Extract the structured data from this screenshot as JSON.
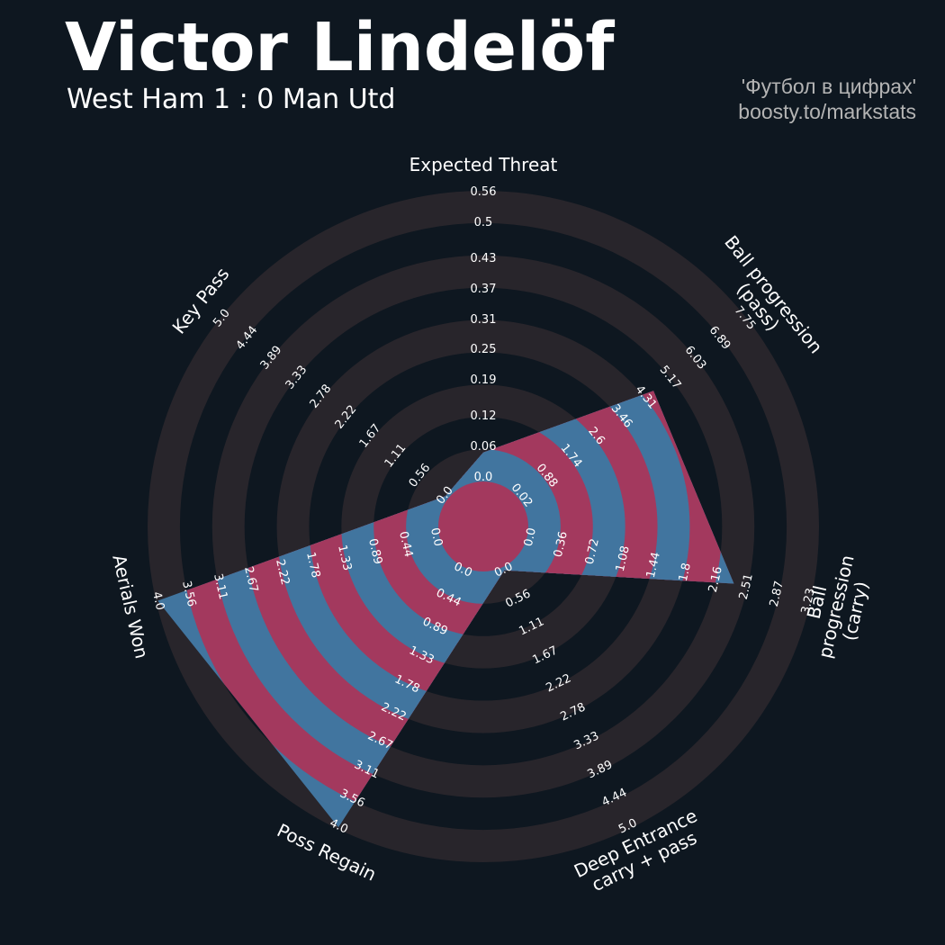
{
  "chart_data": {
    "type": "radar",
    "title": "Victor Lindelöf",
    "subtitle": "West Ham 1 : 0 Man Utd",
    "annotations": [
      "'Футбол в цифрах'",
      "boosty.to/markstats"
    ],
    "params": [
      "Expected Threat",
      "Ball progression (pass)",
      "Ball progression (carry)",
      "Deep Entrance\ncarry + pass",
      "Poss Regain",
      "Aerials Won",
      "Key Pass"
    ],
    "ticks": [
      [
        {
          "value": 0,
          "label": "0.0"
        },
        0.06,
        0.12,
        0.19,
        0.25,
        0.31,
        0.37,
        0.43,
        0.5,
        0.56
      ],
      [
        0.02,
        0.88,
        1.74,
        2.6,
        3.46,
        4.31,
        5.17,
        6.03,
        6.89,
        7.75
      ],
      [
        {
          "value": 0,
          "label": "0.0"
        },
        0.36,
        0.72,
        1.08,
        1.44,
        1.8,
        2.16,
        2.51,
        2.87,
        3.23
      ],
      [
        {
          "value": 0,
          "label": "0.0"
        },
        0.56,
        1.11,
        1.67,
        2.22,
        2.78,
        3.33,
        3.89,
        4.44,
        {
          "value": 5,
          "label": "5.0"
        }
      ],
      [
        {
          "value": 0,
          "label": "0.0"
        },
        0.44,
        0.89,
        1.33,
        1.78,
        2.22,
        2.67,
        3.11,
        3.56,
        {
          "value": 4,
          "label": "4.0"
        }
      ],
      [
        {
          "value": 0,
          "label": "0.0"
        },
        0.44,
        0.89,
        1.33,
        1.78,
        2.22,
        2.67,
        3.11,
        3.56,
        {
          "value": 4,
          "label": "4.0"
        }
      ],
      [
        {
          "value": 0,
          "label": "0.0"
        },
        0.56,
        1.11,
        1.67,
        2.22,
        2.78,
        3.33,
        3.89,
        4.44,
        {
          "value": 5,
          "label": "5.0"
        }
      ]
    ],
    "series": [
      {
        "values": [
          0.05,
          4.6,
          2.36,
          0,
          4,
          4,
          0
        ],
        "colors": [
          "#41759f",
          "#a3395e"
        ]
      }
    ],
    "ring_colors": [
      "#28252b",
      "#0e1720"
    ]
  }
}
